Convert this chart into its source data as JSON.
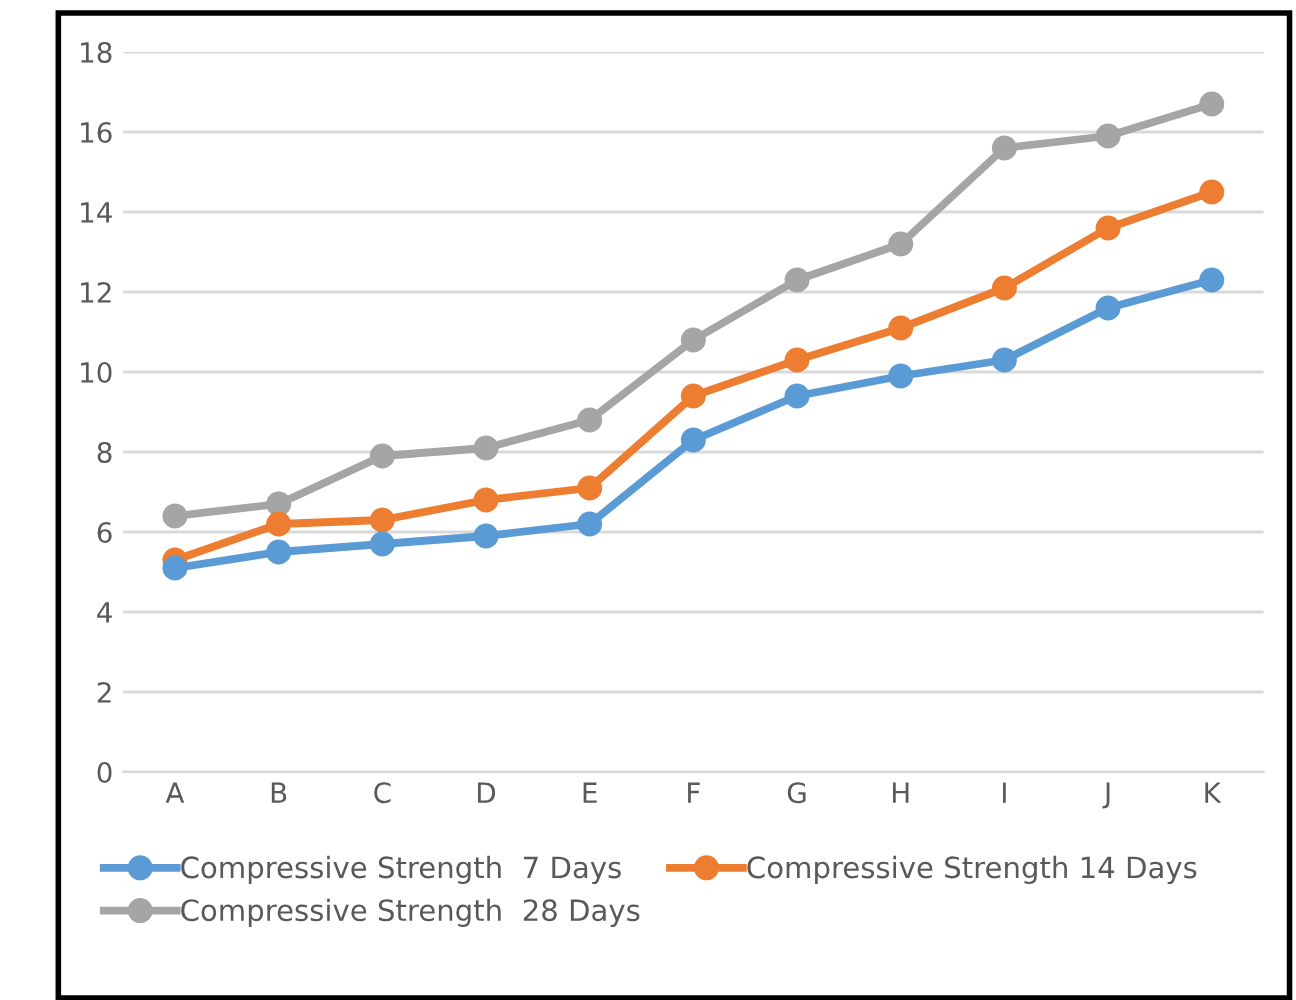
{
  "chart_data": {
    "type": "line",
    "categories": [
      "A",
      "B",
      "C",
      "D",
      "E",
      "F",
      "G",
      "H",
      "I",
      "J",
      "K"
    ],
    "series": [
      {
        "name": "Compressive Strength  7 Days",
        "color": "#5b9bd5",
        "values": [
          5.1,
          5.5,
          5.7,
          5.9,
          6.2,
          8.3,
          9.4,
          9.9,
          10.3,
          11.6,
          12.3
        ]
      },
      {
        "name": "Compressive Strength 14 Days",
        "color": "#ed7d31",
        "values": [
          5.3,
          6.2,
          6.3,
          6.8,
          7.1,
          9.4,
          10.3,
          11.1,
          12.1,
          13.6,
          14.5
        ]
      },
      {
        "name": "Compressive Strength  28 Days",
        "color": "#a5a5a5",
        "values": [
          6.4,
          6.7,
          7.9,
          8.1,
          8.8,
          10.8,
          12.3,
          13.2,
          15.6,
          15.9,
          16.7
        ]
      }
    ],
    "ylim": [
      0,
      18
    ],
    "yticks": [
      0,
      2,
      4,
      6,
      8,
      10,
      12,
      14,
      16,
      18
    ],
    "grid": "y",
    "legend": "bottom",
    "marker": "circle",
    "line_style": "solid"
  }
}
